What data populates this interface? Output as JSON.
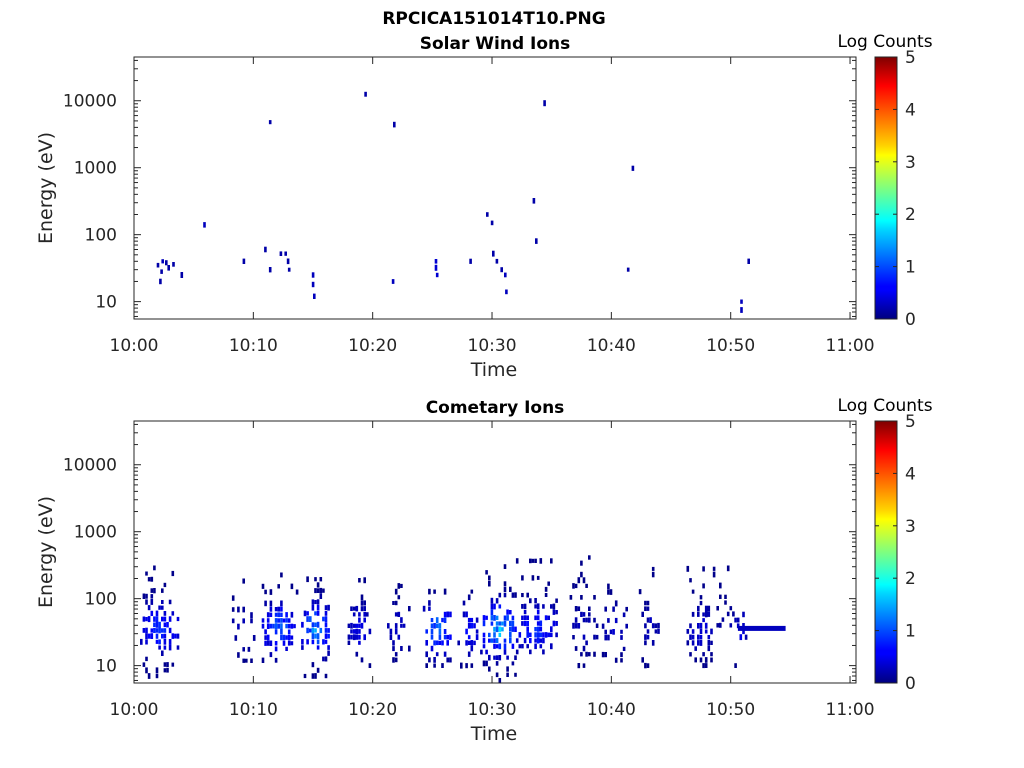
{
  "figure_title": "RPCICA151014T10.PNG",
  "chart_data": [
    {
      "type": "heatmap",
      "title": "Solar Wind Ions",
      "xlabel": "Time",
      "ylabel": "Energy (eV)",
      "x_unit": "minutes past 10:00",
      "xlim": [
        0,
        60.5
      ],
      "ylim": [
        5.5,
        45000
      ],
      "yscale": "log",
      "x_ticks": [
        {
          "value": 0,
          "label": "10:00"
        },
        {
          "value": 10,
          "label": "10:10"
        },
        {
          "value": 20,
          "label": "10:20"
        },
        {
          "value": 30,
          "label": "10:30"
        },
        {
          "value": 40,
          "label": "10:40"
        },
        {
          "value": 50,
          "label": "10:50"
        },
        {
          "value": 60,
          "label": "11:00"
        }
      ],
      "y_ticks": [
        {
          "value": 10,
          "label": "10"
        },
        {
          "value": 100,
          "label": "100"
        },
        {
          "value": 1000,
          "label": "1000"
        },
        {
          "value": 10000,
          "label": "10000"
        }
      ],
      "colorbar": {
        "label": "Log Counts",
        "min": 0,
        "max": 5,
        "ticks": [
          "0",
          "1",
          "2",
          "3",
          "4",
          "5"
        ]
      },
      "cells": [
        [
          1.9,
          35,
          0.2
        ],
        [
          2.2,
          28,
          0.2
        ],
        [
          2.1,
          20,
          0.2
        ],
        [
          2.3,
          40,
          0.3
        ],
        [
          2.6,
          38,
          0.2
        ],
        [
          2.8,
          32,
          0.2
        ],
        [
          3.2,
          36,
          0.2
        ],
        [
          3.9,
          25,
          0.2
        ],
        [
          5.8,
          140,
          0.3
        ],
        [
          9.1,
          40,
          0.2
        ],
        [
          10.9,
          60,
          0.2
        ],
        [
          11.3,
          30,
          0.2
        ],
        [
          12.2,
          52,
          0.2
        ],
        [
          12.6,
          52,
          0.2
        ],
        [
          12.8,
          40,
          0.2
        ],
        [
          12.9,
          30,
          0.2
        ],
        [
          14.9,
          25,
          0.3
        ],
        [
          14.9,
          18,
          0.3
        ],
        [
          15.0,
          12,
          0.3
        ],
        [
          11.3,
          4800,
          0.2
        ],
        [
          19.3,
          12500,
          0.2
        ],
        [
          21.7,
          4400,
          0.2
        ],
        [
          21.6,
          20,
          0.3
        ],
        [
          25.2,
          40,
          0.4
        ],
        [
          25.2,
          32,
          0.4
        ],
        [
          25.3,
          25,
          0.4
        ],
        [
          28.1,
          40,
          0.2
        ],
        [
          29.5,
          200,
          0.2
        ],
        [
          29.9,
          150,
          0.2
        ],
        [
          30.0,
          52,
          0.2
        ],
        [
          30.3,
          40,
          0.2
        ],
        [
          30.7,
          30,
          0.2
        ],
        [
          31.0,
          25,
          0.3
        ],
        [
          31.1,
          14,
          0.3
        ],
        [
          33.4,
          320,
          0.2
        ],
        [
          33.6,
          80,
          0.2
        ],
        [
          34.3,
          9200,
          0.2
        ],
        [
          41.3,
          30,
          0.2
        ],
        [
          41.7,
          980,
          0.2
        ],
        [
          50.8,
          10,
          0.3
        ],
        [
          50.8,
          7.5,
          0.3
        ],
        [
          51.4,
          40,
          0.2
        ]
      ]
    },
    {
      "type": "heatmap",
      "title": "Cometary Ions",
      "xlabel": "Time",
      "ylabel": "Energy (eV)",
      "x_unit": "minutes past 10:00",
      "xlim": [
        0,
        60.5
      ],
      "ylim": [
        5.5,
        45000
      ],
      "yscale": "log",
      "x_ticks": [
        {
          "value": 0,
          "label": "10:00"
        },
        {
          "value": 10,
          "label": "10:10"
        },
        {
          "value": 20,
          "label": "10:20"
        },
        {
          "value": 30,
          "label": "10:30"
        },
        {
          "value": 40,
          "label": "10:40"
        },
        {
          "value": 50,
          "label": "10:50"
        },
        {
          "value": 60,
          "label": "11:00"
        }
      ],
      "y_ticks": [
        {
          "value": 10,
          "label": "10"
        },
        {
          "value": 100,
          "label": "100"
        },
        {
          "value": 1000,
          "label": "1000"
        },
        {
          "value": 10000,
          "label": "10000"
        }
      ],
      "colorbar": {
        "label": "Log Counts",
        "min": 0,
        "max": 5,
        "ticks": [
          "0",
          "1",
          "2",
          "3",
          "4",
          "5"
        ]
      },
      "bursts": [
        {
          "start": 0.5,
          "end": 3.6,
          "emin": 7,
          "emax": 330,
          "peak": 1.1,
          "density": 0.75
        },
        {
          "start": 8.2,
          "end": 10.0,
          "emin": 8,
          "emax": 200,
          "peak": 0.4,
          "density": 0.4
        },
        {
          "start": 10.7,
          "end": 13.6,
          "emin": 12,
          "emax": 230,
          "peak": 1.3,
          "density": 0.7
        },
        {
          "start": 14.0,
          "end": 16.3,
          "emin": 7,
          "emax": 230,
          "peak": 1.6,
          "density": 0.75
        },
        {
          "start": 17.9,
          "end": 19.7,
          "emin": 10,
          "emax": 200,
          "peak": 0.7,
          "density": 0.65
        },
        {
          "start": 21.2,
          "end": 23.0,
          "emin": 10,
          "emax": 180,
          "peak": 0.5,
          "density": 0.45
        },
        {
          "start": 24.2,
          "end": 26.6,
          "emin": 10,
          "emax": 230,
          "peak": 1.4,
          "density": 0.6
        },
        {
          "start": 27.1,
          "end": 28.9,
          "emin": 10,
          "emax": 130,
          "peak": 0.8,
          "density": 0.5
        },
        {
          "start": 29.0,
          "end": 32.0,
          "emin": 6,
          "emax": 330,
          "peak": 1.8,
          "density": 0.8
        },
        {
          "start": 32.0,
          "end": 35.3,
          "emin": 16,
          "emax": 430,
          "peak": 1.0,
          "density": 0.65
        },
        {
          "start": 36.5,
          "end": 38.7,
          "emin": 10,
          "emax": 420,
          "peak": 0.4,
          "density": 0.4
        },
        {
          "start": 39.2,
          "end": 41.3,
          "emin": 12,
          "emax": 200,
          "peak": 0.5,
          "density": 0.5
        },
        {
          "start": 42.3,
          "end": 43.9,
          "emin": 10,
          "emax": 330,
          "peak": 0.4,
          "density": 0.4
        },
        {
          "start": 46.3,
          "end": 48.6,
          "emin": 10,
          "emax": 330,
          "peak": 0.6,
          "density": 0.6
        },
        {
          "start": 48.8,
          "end": 50.3,
          "emin": 40,
          "emax": 320,
          "peak": 0.3,
          "density": 0.4
        },
        {
          "start": 50.3,
          "end": 51.2,
          "emin": 10,
          "emax": 60,
          "peak": 0.6,
          "density": 0.6
        }
      ],
      "bands": [
        {
          "start": 50.6,
          "end": 54.6,
          "energy": 36,
          "value": 0.3
        }
      ]
    }
  ]
}
